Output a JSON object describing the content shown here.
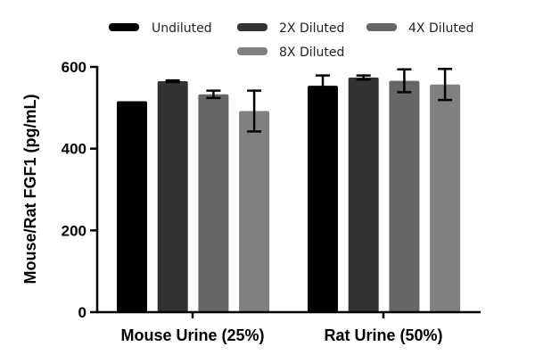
{
  "chart_data": {
    "type": "bar",
    "title": "",
    "xlabel": "",
    "ylabel": "Mouse/Rat FGF1 (pg/mL)",
    "ylim": [
      0,
      600
    ],
    "yticks": [
      0,
      200,
      400,
      600
    ],
    "grid": false,
    "legend_position": "top",
    "categories": [
      "Mouse Urine (25%)",
      "Rat Urine (50%)"
    ],
    "series": [
      {
        "name": "Undiluted",
        "color": "#000000",
        "values": [
          516,
          554
        ],
        "errors": [
          0,
          25
        ]
      },
      {
        "name": "2X Diluted",
        "color": "#333333",
        "values": [
          565,
          574
        ],
        "errors": [
          2,
          5
        ]
      },
      {
        "name": "4X Diluted",
        "color": "#666666",
        "values": [
          533,
          566
        ],
        "errors": [
          9,
          28
        ]
      },
      {
        "name": "8X Diluted",
        "color": "#808080",
        "values": [
          492,
          557
        ],
        "errors": [
          50,
          38
        ]
      }
    ]
  }
}
